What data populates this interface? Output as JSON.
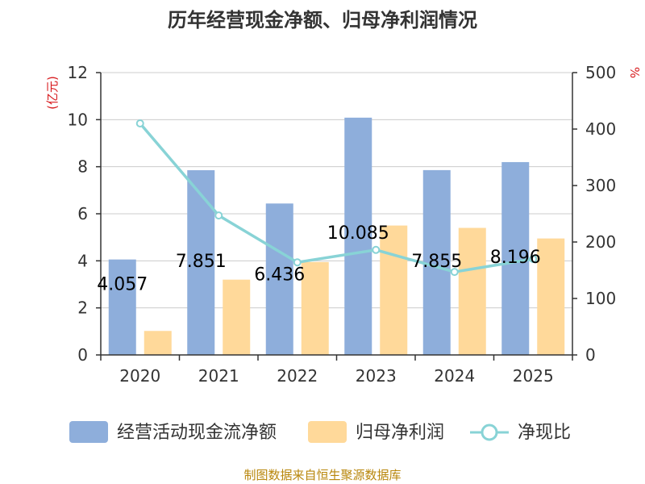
{
  "chart_data": {
    "type": "bar",
    "title": "历年经营现金净额、归母净利润情况",
    "categories": [
      "2020",
      "2021",
      "2022",
      "2023",
      "2024",
      "2025"
    ],
    "series": [
      {
        "name": "经营活动现金流净额",
        "type": "bar",
        "axis": "left",
        "color": "#8eaedb",
        "values": [
          4.057,
          7.851,
          6.436,
          10.085,
          7.855,
          8.196
        ]
      },
      {
        "name": "归母净利润",
        "type": "bar",
        "axis": "left",
        "color": "#ffd99a",
        "values": [
          1.02,
          3.2,
          3.95,
          5.5,
          5.4,
          4.95
        ]
      },
      {
        "name": "净现比",
        "type": "line",
        "axis": "right",
        "color": "#88d3d6",
        "values": [
          410,
          247,
          164,
          186,
          147,
          170
        ]
      }
    ],
    "data_labels": [
      "4.057",
      "7.851",
      "6.436",
      "10.085",
      "7.855",
      "8.196"
    ],
    "left_axis": {
      "label": "(亿元)",
      "ylim": [
        0,
        12
      ],
      "ticks": [
        "0",
        "2",
        "4",
        "6",
        "8",
        "10",
        "12"
      ]
    },
    "right_axis": {
      "label": "%",
      "ylim": [
        0,
        500
      ],
      "ticks": [
        "0",
        "100",
        "200",
        "300",
        "400",
        "500"
      ]
    },
    "grid": true,
    "legend_position": "bottom",
    "source": "制图数据来自恒生聚源数据库"
  }
}
